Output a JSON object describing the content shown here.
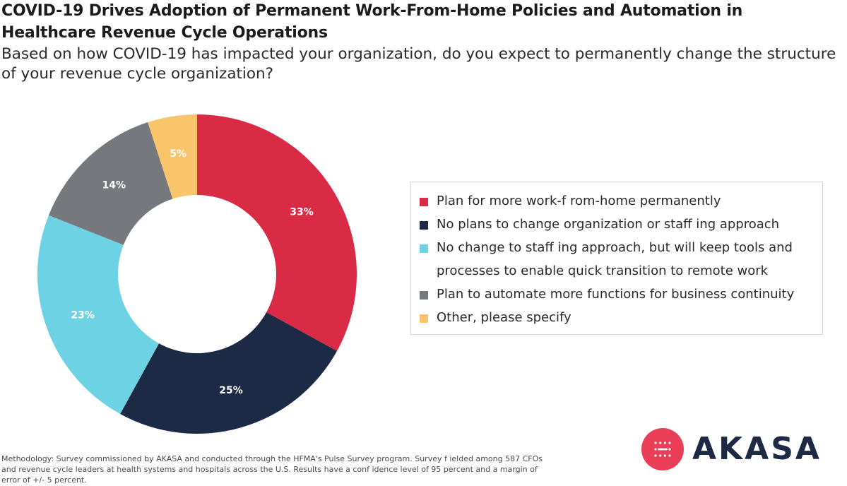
{
  "title": "COVID-19 Drives Adoption of Permanent Work-From-Home Policies and Automation in Healthcare Revenue Cycle Operations",
  "subtitle": "Based on how COVID-19 has impacted your organization, do you expect to permanently change the structure of your revenue cycle organization?",
  "chart_data": {
    "type": "pie",
    "donut": true,
    "title": "COVID-19 Drives Adoption of Permanent Work-From-Home Policies and Automation in Healthcare Revenue Cycle Operations",
    "subtitle": "Based on how COVID-19 has impacted your organization, do you expect to permanently change the structure of your revenue cycle organization?",
    "unit": "%",
    "legend_position": "right",
    "categories": [
      "Plan for more work-f rom-home permanently",
      "No plans to change organization or staff ing approach",
      "No change to staff ing approach, but will keep tools and processes to enable quick transition to remote work",
      "Plan to automate more functions for business continuity",
      "Other, please specify"
    ],
    "values": [
      33,
      25,
      23,
      14,
      5
    ],
    "data_labels": [
      "33%",
      "25%",
      "23%",
      "14%",
      "5%"
    ],
    "colors": [
      "#d92b45",
      "#1c2a45",
      "#6dd3e4",
      "#75787d",
      "#f9c56a"
    ]
  },
  "legend": {
    "items": [
      {
        "label": "Plan for more work-f rom-home permanently",
        "color": "#d92b45"
      },
      {
        "label": "No plans to change organization or staff ing approach",
        "color": "#1c2a45"
      },
      {
        "label": "No change to staff ing approach, but will keep tools and processes to enable quick transition to remote work",
        "color": "#6dd3e4"
      },
      {
        "label": "Plan to automate more functions for business continuity",
        "color": "#75787d"
      },
      {
        "label": "Other, please specify",
        "color": "#f9c56a"
      }
    ]
  },
  "methodology": "Methodology: Survey commissioned by AKASA and conducted through the HFMA's Pulse Survey program. Survey f ielded among 587 CFOs and revenue cycle leaders at health systems and hospitals across the U.S. Results have a conf idence level of 95 percent and a margin of error of +/- 5 percent.",
  "logo": {
    "text": "AKASA",
    "mark_color": "#ea3d57",
    "text_color": "#1e2a44"
  }
}
